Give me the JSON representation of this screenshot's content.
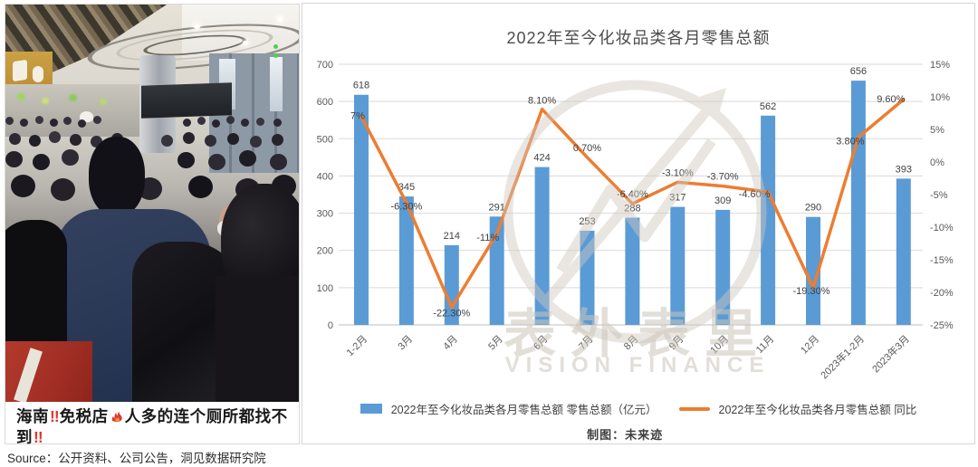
{
  "photo": {
    "caption": {
      "seg_hainan": "海南",
      "seg_excl1": "!!",
      "seg_store": "免税店",
      "seg_rest": "人多的连个厕所都找不到",
      "seg_excl2": "!!"
    }
  },
  "source_line": "Source：公开资料、公司公告，洞见数据研究院",
  "chart_data": {
    "type": "bar",
    "title": "2022年至今化妆品类各月零售总额",
    "credit": "制图：未来迹",
    "categories": [
      "1-2月",
      "3月",
      "4月",
      "5月",
      "6月",
      "7月",
      "8月",
      "9月",
      "10月",
      "11月",
      "12月",
      "2023年1-2月",
      "2023年3月"
    ],
    "series": [
      {
        "name": "2022年至今化妆品类各月零售总额 零售总额（亿元）",
        "type": "bar",
        "axis": "left",
        "color": "#5B9BD5",
        "values": [
          618,
          345,
          214,
          291,
          424,
          253,
          288,
          317,
          309,
          562,
          290,
          656,
          393
        ],
        "labels": [
          "618",
          "345",
          "214",
          "291",
          "424",
          "253",
          "288",
          "317",
          "309",
          "562",
          "290",
          "656",
          "393"
        ]
      },
      {
        "name": "2022年至今化妆品类各月零售总额 同比",
        "type": "line",
        "axis": "right",
        "color": "#ED7D31",
        "values": [
          7,
          -6.3,
          -22.3,
          -11,
          8.1,
          0.7,
          -6.4,
          -3.1,
          -3.7,
          -4.6,
          -19.3,
          3.8,
          9.6
        ],
        "labels": [
          "7%",
          "-6.30%",
          "-22.30%",
          "-11%",
          "8.10%",
          "0.70%",
          "-6.40%",
          "-3.10%",
          "-3.70%",
          "-4.60%",
          "-19.30%",
          "3.80%",
          "9.60%"
        ]
      }
    ],
    "left_axis": {
      "min": 0,
      "max": 700,
      "step": 100,
      "tick_labels": [
        "0",
        "100",
        "200",
        "300",
        "400",
        "500",
        "600",
        "700"
      ]
    },
    "right_axis": {
      "min": -25,
      "max": 15,
      "step": 5,
      "tick_labels": [
        "15%",
        "10%",
        "5%",
        "0%",
        "-5%",
        "-10%",
        "-15%",
        "-20%",
        "-25%"
      ]
    },
    "grid": true,
    "legend_position": "bottom",
    "colors": {
      "grid": "#d9d9d9",
      "axis": "#bfbfbf",
      "tick_text": "#595959",
      "data_label": "#404040"
    },
    "watermark": {
      "line1": "表外表里",
      "line2": "VISION FINANCE"
    }
  }
}
